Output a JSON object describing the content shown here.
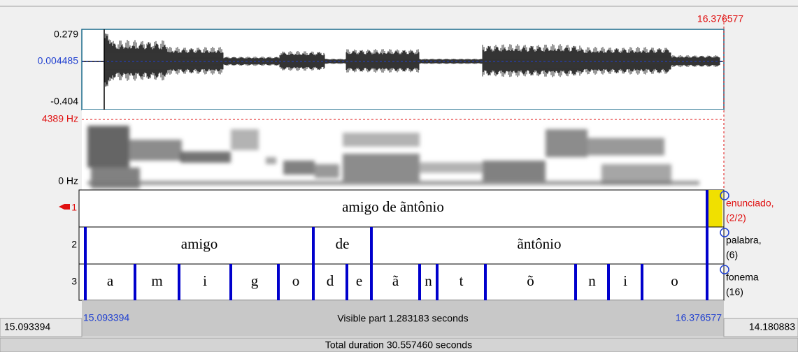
{
  "cursor_time": "16.376577",
  "waveform": {
    "max": "0.279",
    "cursor_value": "0.004485",
    "min": "-0.404"
  },
  "spectrogram": {
    "max": "4389 Hz",
    "min": "0 Hz"
  },
  "tiers": [
    {
      "number": "1",
      "name": "enunciado,",
      "count": "(2/2)",
      "intervals": [
        "amigo de ãntônio"
      ]
    },
    {
      "number": "2",
      "name": "palabra,",
      "count": "(6)",
      "intervals": [
        "amigo",
        "de",
        "ãntônio"
      ]
    },
    {
      "number": "3",
      "name": "fonema",
      "count": "(16)",
      "intervals": [
        "a",
        "m",
        "i",
        "g",
        "o",
        "d",
        "e",
        "ã",
        "n",
        "t",
        "õ",
        "n",
        "i",
        "o"
      ]
    }
  ],
  "bottom": {
    "visible_start": "15.093394",
    "visible_label": "Visible part 1.283183 seconds",
    "visible_end": "16.376577",
    "left_time": "15.093394",
    "right_time": "14.180883",
    "total": "Total duration 30.557460 seconds"
  }
}
